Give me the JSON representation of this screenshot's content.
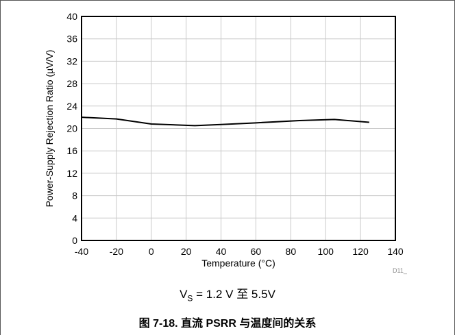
{
  "chart_data": {
    "type": "line",
    "xlabel": "Temperature (°C)",
    "ylabel": "Power-Supply Rejection Ratio (µV/V)",
    "xlim": [
      -40,
      140
    ],
    "ylim": [
      0,
      40
    ],
    "xticks": [
      -40,
      -20,
      0,
      20,
      40,
      60,
      80,
      100,
      120,
      140
    ],
    "yticks": [
      0,
      4,
      8,
      12,
      16,
      20,
      24,
      28,
      32,
      36,
      40
    ],
    "grid": true,
    "series": [
      {
        "x": [
          -40,
          -20,
          0,
          25,
          40,
          60,
          85,
          105,
          125
        ],
        "y": [
          22.0,
          21.7,
          20.8,
          20.5,
          20.7,
          21.0,
          21.4,
          21.6,
          21.1
        ]
      }
    ],
    "line_color": "#000000",
    "grid_color": "#c8c8c8"
  },
  "figure": {
    "code": "D11_",
    "condition_prefix": "V",
    "condition_sub": "S",
    "condition_suffix": " = 1.2 V 至 5.5V",
    "caption": "图 7-18. 直流 PSRR 与温度间的关系"
  }
}
